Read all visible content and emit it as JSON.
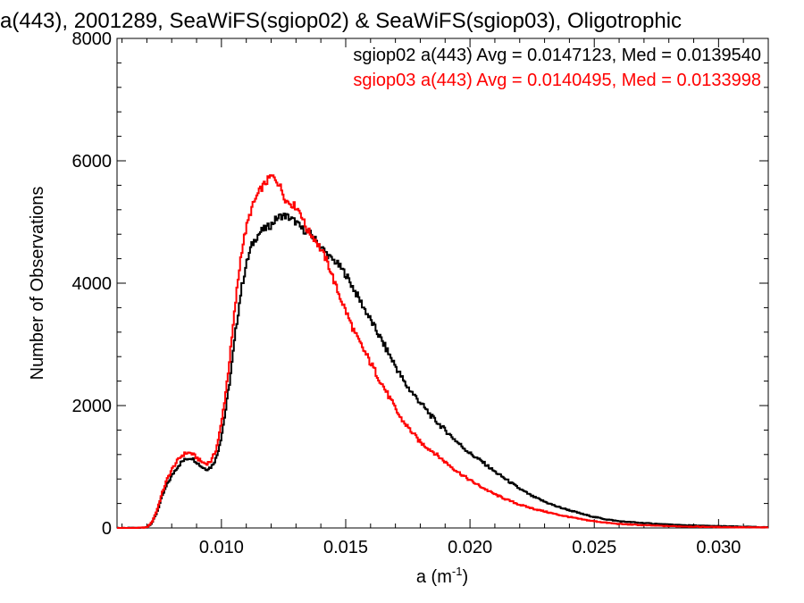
{
  "chart_data": {
    "type": "line",
    "title": "a(443), 2001289, SeaWiFS(sgiop02) & SeaWiFS(sgiop03), Oligotrophic",
    "xlabel": "a (m",
    "xlabel_sup": "-1",
    "xlabel_close": ")",
    "ylabel": "Number of Observations",
    "xlim": [
      0.0058,
      0.032
    ],
    "ylim": [
      0,
      8000
    ],
    "x_ticks": [
      0.01,
      0.015,
      0.02,
      0.025,
      0.03
    ],
    "x_tick_labels": [
      "0.010",
      "0.015",
      "0.020",
      "0.025",
      "0.030"
    ],
    "y_ticks": [
      0,
      2000,
      4000,
      6000,
      8000
    ],
    "y_tick_labels": [
      "0",
      "2000",
      "4000",
      "6000",
      "8000"
    ],
    "grid": false,
    "legend_position": "top-right",
    "series": [
      {
        "name": "sgiop02",
        "color": "#000000",
        "legend_text": "sgiop02 a(443) Avg = 0.0147123, Med = 0.0139540",
        "x": [
          0.0058,
          0.0066,
          0.007,
          0.0072,
          0.0074,
          0.0076,
          0.0078,
          0.008,
          0.0082,
          0.0084,
          0.0086,
          0.0088,
          0.009,
          0.0092,
          0.0094,
          0.0096,
          0.0098,
          0.01,
          0.0102,
          0.0104,
          0.0106,
          0.0108,
          0.011,
          0.0112,
          0.0114,
          0.0116,
          0.0118,
          0.012,
          0.0122,
          0.0124,
          0.0126,
          0.0128,
          0.013,
          0.0132,
          0.0134,
          0.0136,
          0.0138,
          0.014,
          0.0142,
          0.0144,
          0.0146,
          0.0148,
          0.015,
          0.0152,
          0.0154,
          0.0156,
          0.0158,
          0.016,
          0.0162,
          0.0164,
          0.0166,
          0.0168,
          0.017,
          0.0172,
          0.0174,
          0.0176,
          0.0178,
          0.018,
          0.0185,
          0.019,
          0.0195,
          0.02,
          0.0205,
          0.021,
          0.0215,
          0.022,
          0.0225,
          0.023,
          0.0235,
          0.024,
          0.0245,
          0.025,
          0.0255,
          0.026,
          0.027,
          0.028,
          0.029,
          0.03,
          0.031,
          0.032
        ],
        "values": [
          0,
          0,
          10,
          80,
          250,
          500,
          700,
          850,
          980,
          1080,
          1130,
          1150,
          1080,
          1000,
          960,
          1000,
          1150,
          1500,
          2000,
          2600,
          3300,
          3900,
          4300,
          4600,
          4750,
          4850,
          4900,
          4950,
          5050,
          5100,
          5100,
          5050,
          5000,
          4900,
          4850,
          4800,
          4700,
          4600,
          4500,
          4400,
          4350,
          4250,
          4150,
          4000,
          3850,
          3700,
          3550,
          3400,
          3250,
          3100,
          2950,
          2800,
          2650,
          2500,
          2350,
          2250,
          2150,
          2050,
          1800,
          1600,
          1400,
          1220,
          1080,
          920,
          780,
          640,
          520,
          430,
          350,
          290,
          230,
          180,
          140,
          110,
          80,
          55,
          40,
          30,
          20,
          12
        ]
      },
      {
        "name": "sgiop03",
        "color": "#ff0000",
        "legend_text": "sgiop03 a(443) Avg = 0.0140495, Med = 0.0133998",
        "x": [
          0.0058,
          0.0066,
          0.007,
          0.0072,
          0.0074,
          0.0076,
          0.0078,
          0.008,
          0.0082,
          0.0084,
          0.0086,
          0.0088,
          0.009,
          0.0092,
          0.0094,
          0.0096,
          0.0098,
          0.01,
          0.0102,
          0.0104,
          0.0106,
          0.0108,
          0.011,
          0.0112,
          0.0114,
          0.0116,
          0.0118,
          0.012,
          0.0122,
          0.0124,
          0.0126,
          0.0128,
          0.013,
          0.0132,
          0.0134,
          0.0136,
          0.0138,
          0.014,
          0.0142,
          0.0144,
          0.0146,
          0.0148,
          0.015,
          0.0152,
          0.0154,
          0.0156,
          0.0158,
          0.016,
          0.0162,
          0.0164,
          0.0166,
          0.0168,
          0.017,
          0.0172,
          0.0174,
          0.0176,
          0.0178,
          0.018,
          0.0185,
          0.019,
          0.0195,
          0.02,
          0.0205,
          0.021,
          0.0215,
          0.022,
          0.0225,
          0.023,
          0.0235,
          0.024,
          0.0245,
          0.025,
          0.0255,
          0.026,
          0.027,
          0.028,
          0.029,
          0.03,
          0.031,
          0.032
        ],
        "values": [
          0,
          0,
          10,
          90,
          280,
          550,
          780,
          950,
          1080,
          1180,
          1230,
          1220,
          1150,
          1080,
          1050,
          1100,
          1300,
          1700,
          2300,
          3000,
          3800,
          4500,
          4900,
          5200,
          5400,
          5550,
          5650,
          5750,
          5700,
          5550,
          5350,
          5300,
          5250,
          5150,
          4900,
          4800,
          4700,
          4550,
          4400,
          4200,
          3950,
          3750,
          3550,
          3350,
          3150,
          3000,
          2850,
          2700,
          2550,
          2400,
          2250,
          2100,
          1950,
          1800,
          1700,
          1600,
          1500,
          1400,
          1250,
          1080,
          920,
          780,
          660,
          550,
          460,
          380,
          320,
          270,
          220,
          180,
          140,
          110,
          85,
          65,
          45,
          30,
          22,
          15,
          10,
          8
        ]
      }
    ]
  }
}
